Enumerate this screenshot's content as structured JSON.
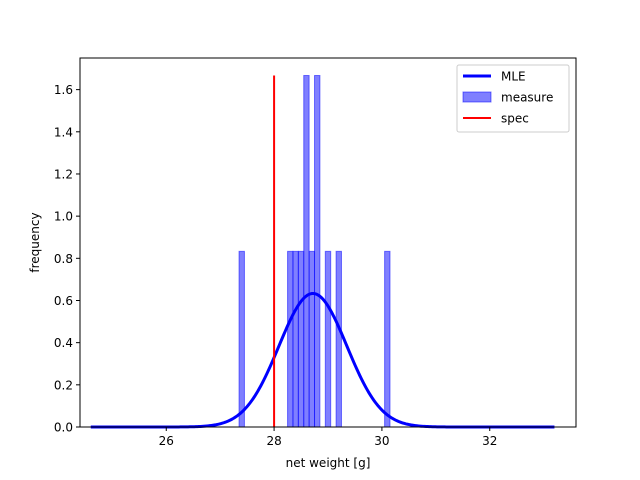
{
  "chart_data": {
    "type": "histogram",
    "title": "",
    "xlabel": "net weight [g]",
    "ylabel": "frequency",
    "xlim": [
      24.4,
      33.6
    ],
    "ylim": [
      0,
      1.75
    ],
    "xticks": [
      26,
      28,
      30,
      32
    ],
    "yticks": [
      0.0,
      0.2,
      0.4,
      0.6,
      0.8,
      1.0,
      1.2,
      1.4,
      1.6
    ],
    "xtick_labels": [
      "26",
      "28",
      "30",
      "32"
    ],
    "ytick_labels": [
      "0.0",
      "0.2",
      "0.4",
      "0.6",
      "0.8",
      "1.0",
      "1.2",
      "1.4",
      "1.6"
    ],
    "legend": {
      "position": "top-right",
      "entries": [
        {
          "key": "mle",
          "label": "MLE",
          "color": "#0000ff",
          "kind": "line"
        },
        {
          "key": "measure",
          "label": "measure",
          "color": "#0000ff",
          "kind": "patch"
        },
        {
          "key": "spec",
          "label": "spec",
          "color": "#ff0000",
          "kind": "line"
        }
      ]
    },
    "histogram": {
      "name": "measure",
      "color": "#0000ff",
      "alpha": 0.5,
      "bin_width": 0.1,
      "bars": [
        {
          "x": 27.4,
          "height": 0.833
        },
        {
          "x": 28.3,
          "height": 0.833
        },
        {
          "x": 28.4,
          "height": 0.833
        },
        {
          "x": 28.5,
          "height": 0.833
        },
        {
          "x": 28.6,
          "height": 1.667
        },
        {
          "x": 28.7,
          "height": 0.833
        },
        {
          "x": 28.8,
          "height": 1.667
        },
        {
          "x": 29.0,
          "height": 0.833
        },
        {
          "x": 29.2,
          "height": 0.833
        },
        {
          "x": 30.1,
          "height": 0.833
        }
      ]
    },
    "mle": {
      "name": "MLE",
      "color": "#0000ff",
      "distribution": "normal",
      "mean": 28.72,
      "std": 0.63,
      "x_range": [
        24.6,
        33.2
      ]
    },
    "spec": {
      "name": "spec",
      "color": "#ff0000",
      "x": 28.0,
      "y_range": [
        0,
        1.667
      ]
    }
  }
}
